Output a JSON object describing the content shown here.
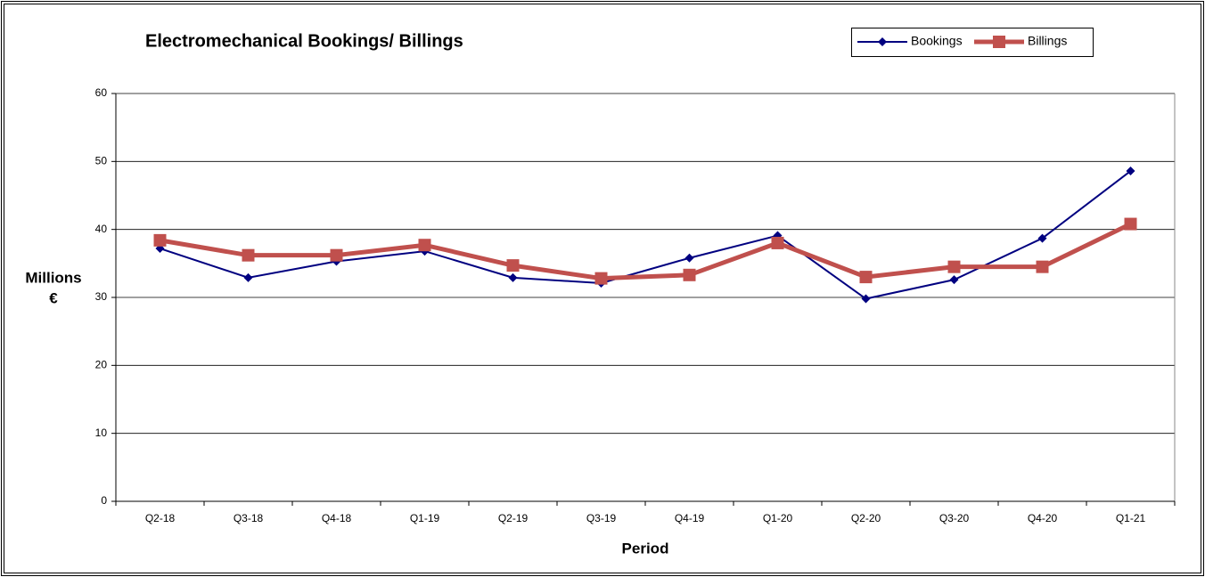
{
  "chart_data": {
    "type": "line",
    "title": "Electromechanical Bookings/ Billings",
    "xlabel": "Period",
    "ylabel": [
      "Millions",
      "€"
    ],
    "categories": [
      "Q2-18",
      "Q3-18",
      "Q4-18",
      "Q1-19",
      "Q2-19",
      "Q3-19",
      "Q4-19",
      "Q1-20",
      "Q2-20",
      "Q3-20",
      "Q4-20",
      "Q1-21"
    ],
    "series": [
      {
        "name": "Bookings",
        "color": "#000080",
        "values": [
          37.2,
          32.9,
          35.3,
          36.8,
          32.9,
          32.1,
          35.8,
          39.1,
          29.8,
          32.6,
          38.7,
          48.6
        ]
      },
      {
        "name": "Billings",
        "color": "#c0504d",
        "values": [
          38.4,
          36.2,
          36.2,
          37.7,
          34.7,
          32.8,
          33.3,
          38.0,
          33.0,
          34.5,
          34.5,
          40.8
        ]
      }
    ],
    "ylim": [
      0,
      60
    ],
    "yticks": [
      0,
      10,
      20,
      30,
      40,
      50,
      60
    ],
    "grid": true,
    "legend": "top-right"
  }
}
